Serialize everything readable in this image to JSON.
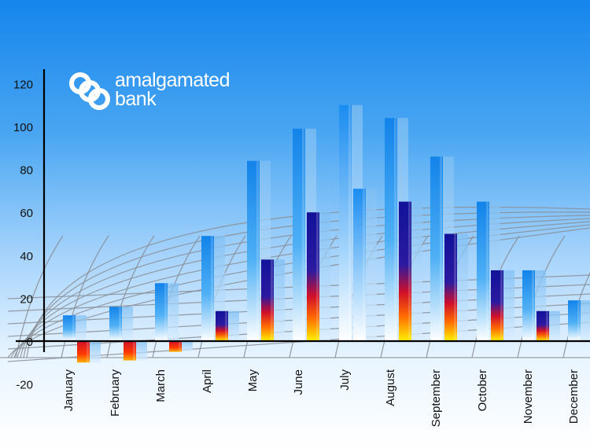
{
  "brand": {
    "line1": "amalgamated",
    "line2": "bank",
    "logo_name": "amalgamated-bank-logo"
  },
  "chart_data": {
    "type": "bar",
    "title": "",
    "xlabel": "",
    "ylabel": "",
    "categories": [
      "January",
      "February",
      "March",
      "April",
      "May",
      "June",
      "July",
      "August",
      "September",
      "October",
      "November",
      "December"
    ],
    "series": [
      {
        "values": [
          12,
          16,
          27,
          49,
          84,
          99,
          110,
          104,
          86,
          65,
          33,
          19
        ],
        "color": "#1e90f0"
      },
      {
        "values": [
          -10,
          -9,
          -5,
          14,
          38,
          60,
          71,
          65,
          50,
          33,
          14,
          null
        ],
        "color": "#1a1a9e"
      }
    ],
    "ylim": [
      -20,
      120
    ],
    "yticks": [
      -20,
      0,
      20,
      40,
      60,
      80,
      100,
      120
    ],
    "grid": true,
    "legend": "none"
  }
}
